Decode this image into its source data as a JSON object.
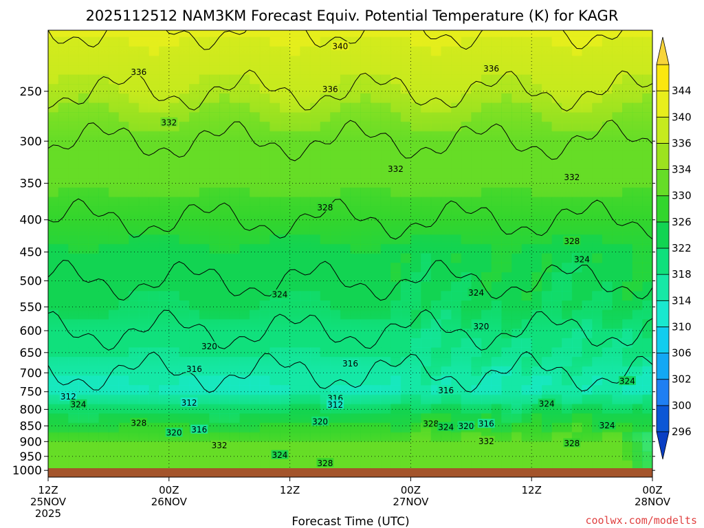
{
  "chart_data": {
    "type": "heatmap",
    "title": "2025112512 NAM3KM Forecast Equiv. Potential Temperature (K) for KAGR",
    "xlabel": "Forecast Time (UTC)",
    "ylabel": "",
    "y_scale": "log",
    "y_inverted": true,
    "ylim": [
      1025,
      200
    ],
    "y_ticks": [
      250,
      300,
      350,
      400,
      450,
      500,
      550,
      600,
      650,
      700,
      750,
      800,
      850,
      900,
      950,
      1000
    ],
    "x_ticks": [
      {
        "hour": 0,
        "line1": "12Z",
        "line2": "25NOV",
        "line3": "2025"
      },
      {
        "hour": 12,
        "line1": "00Z",
        "line2": "26NOV",
        "line3": ""
      },
      {
        "hour": 24,
        "line1": "12Z",
        "line2": "",
        "line3": ""
      },
      {
        "hour": 36,
        "line1": "00Z",
        "line2": "27NOV",
        "line3": ""
      },
      {
        "hour": 48,
        "line1": "12Z",
        "line2": "",
        "line3": ""
      },
      {
        "hour": 60,
        "line1": "00Z",
        "line2": "28NOV",
        "line3": ""
      }
    ],
    "grid": true,
    "colorbar": {
      "levels": [
        296,
        300,
        302,
        306,
        310,
        314,
        318,
        322,
        326,
        330,
        334,
        336,
        340,
        344
      ],
      "labels": [
        "296",
        "300",
        "302",
        "306",
        "310",
        "314",
        "318",
        "322",
        "326",
        "330",
        "334",
        "336",
        "340",
        "344"
      ],
      "colors": [
        "#0b57d6",
        "#1f7ff2",
        "#13a8f4",
        "#12cdee",
        "#19e8cf",
        "#16e8a6",
        "#10e07c",
        "#12d452",
        "#33d62d",
        "#66dd27",
        "#9de21f",
        "#c6ea1e",
        "#e8ee1c",
        "#fbe70f"
      ],
      "under_color": "#0a3fc4",
      "over_color": "#f7d43a"
    },
    "profile": {
      "pressure": [
        1000,
        950,
        900,
        850,
        800,
        750,
        700,
        650,
        600,
        550,
        500,
        450,
        400,
        350,
        300,
        250,
        200
      ],
      "theta_e": [
        333,
        332,
        330,
        327,
        322,
        314,
        316,
        318,
        320,
        322,
        324,
        325,
        328,
        331,
        332,
        336,
        340
      ]
    },
    "contour_labels": [
      {
        "text": "340",
        "hour": 29,
        "p": 212
      },
      {
        "text": "336",
        "hour": 9,
        "p": 233
      },
      {
        "text": "336",
        "hour": 44,
        "p": 230
      },
      {
        "text": "336",
        "hour": 28,
        "p": 248
      },
      {
        "text": "332",
        "hour": 12,
        "p": 280
      },
      {
        "text": "332",
        "hour": 34.5,
        "p": 332
      },
      {
        "text": "332",
        "hour": 52,
        "p": 342
      },
      {
        "text": "328",
        "hour": 27.5,
        "p": 382
      },
      {
        "text": "328",
        "hour": 52,
        "p": 432
      },
      {
        "text": "324",
        "hour": 53,
        "p": 462
      },
      {
        "text": "324",
        "hour": 23,
        "p": 525
      },
      {
        "text": "324",
        "hour": 42.5,
        "p": 522
      },
      {
        "text": "320",
        "hour": 43,
        "p": 590
      },
      {
        "text": "320",
        "hour": 16,
        "p": 635
      },
      {
        "text": "316",
        "hour": 14.5,
        "p": 690
      },
      {
        "text": "316",
        "hour": 30,
        "p": 676
      },
      {
        "text": "316",
        "hour": 39.5,
        "p": 746
      },
      {
        "text": "312",
        "hour": 2,
        "p": 763
      },
      {
        "text": "312",
        "hour": 14,
        "p": 780
      },
      {
        "text": "316",
        "hour": 28.5,
        "p": 768
      },
      {
        "text": "312",
        "hour": 28.5,
        "p": 786
      },
      {
        "text": "324",
        "hour": 3,
        "p": 785
      },
      {
        "text": "324",
        "hour": 49.5,
        "p": 783
      },
      {
        "text": "324",
        "hour": 57.5,
        "p": 721
      },
      {
        "text": "328",
        "hour": 9,
        "p": 840
      },
      {
        "text": "320",
        "hour": 27,
        "p": 836
      },
      {
        "text": "328",
        "hour": 38,
        "p": 843
      },
      {
        "text": "324",
        "hour": 39.5,
        "p": 853
      },
      {
        "text": "320",
        "hour": 41.5,
        "p": 850
      },
      {
        "text": "316",
        "hour": 43.5,
        "p": 843
      },
      {
        "text": "324",
        "hour": 55.5,
        "p": 848
      },
      {
        "text": "320",
        "hour": 12.5,
        "p": 871
      },
      {
        "text": "316",
        "hour": 15,
        "p": 861
      },
      {
        "text": "332",
        "hour": 17,
        "p": 912
      },
      {
        "text": "332",
        "hour": 43.5,
        "p": 898
      },
      {
        "text": "328",
        "hour": 52,
        "p": 905
      },
      {
        "text": "324",
        "hour": 23,
        "p": 945
      },
      {
        "text": "328",
        "hour": 27.5,
        "p": 973
      }
    ]
  },
  "credit": "coolwx.com/modelts"
}
